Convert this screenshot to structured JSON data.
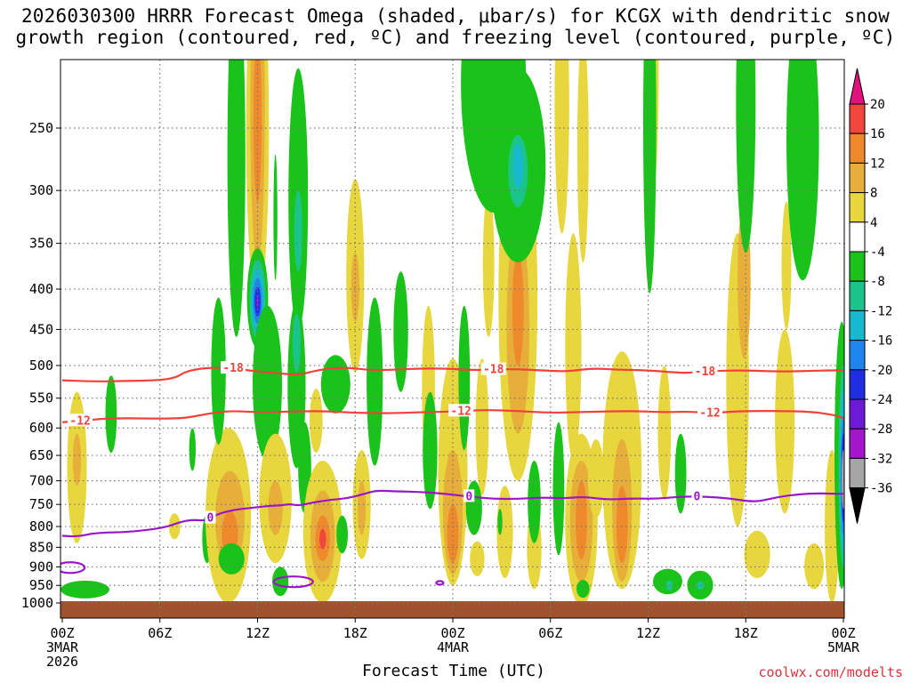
{
  "title": {
    "line1": "2026030300 HRRR Forecast Omega (shaded, μbar/s) for KCGX with dendritic snow",
    "line2": "growth region (contoured, red, ºC) and freezing level (contoured, purple, ºC)"
  },
  "xlabel": "Forecast Time (UTC)",
  "credit": "coolwx.com/modelts",
  "colors": {
    "dgz": "#f0413a",
    "freezing": "#9a17c8",
    "ground": "#a0522d",
    "credit": "#e0303a"
  },
  "chart_data": {
    "type": "heatmap",
    "title": "2026030300 HRRR Forecast Omega (shaded, μbar/s) for KCGX with dendritic snow growth region (contoured, red, ºC) and freezing level (contoured, purple, ºC)",
    "xlabel": "Forecast Time (UTC)",
    "ylabel": "",
    "x_unit": "forecast hour",
    "xlim": [
      0,
      48
    ],
    "ylim_hPa": [
      1050,
      200
    ],
    "y_scale": "log",
    "grid": true,
    "x_ticks": [
      {
        "hour": 0,
        "label": "00Z",
        "sub1": "3MAR",
        "sub2": "2026"
      },
      {
        "hour": 6,
        "label": "06Z"
      },
      {
        "hour": 12,
        "label": "12Z"
      },
      {
        "hour": 18,
        "label": "18Z"
      },
      {
        "hour": 24,
        "label": "00Z",
        "sub1": "4MAR"
      },
      {
        "hour": 30,
        "label": "06Z"
      },
      {
        "hour": 36,
        "label": "12Z"
      },
      {
        "hour": 42,
        "label": "18Z"
      },
      {
        "hour": 48,
        "label": "00Z",
        "sub1": "5MAR"
      }
    ],
    "y_ticks": [
      250,
      300,
      350,
      400,
      450,
      500,
      550,
      600,
      650,
      700,
      750,
      800,
      850,
      900,
      950,
      1000
    ],
    "colorbar": {
      "labels": [
        "20",
        "16",
        "12",
        "8",
        "4",
        "-4",
        "-8",
        "-12",
        "-16",
        "-20",
        "-24",
        "-28",
        "-32",
        "-36"
      ],
      "bins": [
        {
          "range": "16-20",
          "color": "#f2463c"
        },
        {
          "range": "12-16",
          "color": "#ee8a2c"
        },
        {
          "range": "8-12",
          "color": "#e7ae3a"
        },
        {
          "range": "4-8",
          "color": "#e8d63e"
        },
        {
          "range": "-4-4",
          "color": "#ffffff"
        },
        {
          "range": "-8--4",
          "color": "#19c319"
        },
        {
          "range": "-12--8",
          "color": "#1bc48a"
        },
        {
          "range": "-16--12",
          "color": "#17b8d0"
        },
        {
          "range": "-20--16",
          "color": "#1d86ee"
        },
        {
          "range": "-24--20",
          "color": "#1f2ee0"
        },
        {
          "range": "-28--24",
          "color": "#6d1ad6"
        },
        {
          "range": "-32--28",
          "color": "#a316cc"
        },
        {
          "range": "-36--32",
          "color": "#a6a6a6"
        }
      ],
      "over_color": "#e0127e",
      "under_color": "#000000"
    },
    "series": [
      {
        "name": "-18",
        "color": "#f0413a",
        "labels": [
          {
            "text": "-18",
            "x": 10.5
          },
          {
            "text": "-18",
            "x": 26.5
          },
          {
            "text": "-18",
            "x": 39.5
          }
        ],
        "points": [
          [
            0,
            522
          ],
          [
            2,
            524
          ],
          [
            4,
            523
          ],
          [
            6,
            522
          ],
          [
            7,
            518
          ],
          [
            7.5,
            510
          ],
          [
            8.3,
            505
          ],
          [
            9.3,
            503
          ],
          [
            10.5,
            504
          ],
          [
            11.7,
            508
          ],
          [
            13,
            511
          ],
          [
            14.5,
            514
          ],
          [
            15.5,
            508
          ],
          [
            16.5,
            504
          ],
          [
            17.5,
            503
          ],
          [
            19,
            507
          ],
          [
            20.5,
            506
          ],
          [
            22.5,
            504
          ],
          [
            24,
            505
          ],
          [
            25.5,
            507
          ],
          [
            27.5,
            505
          ],
          [
            29.5,
            507
          ],
          [
            31,
            509
          ],
          [
            32.5,
            504
          ],
          [
            34,
            506
          ],
          [
            36,
            507
          ],
          [
            37.5,
            510
          ],
          [
            38.5,
            511
          ],
          [
            40,
            508
          ],
          [
            42,
            507
          ],
          [
            44,
            509
          ],
          [
            46,
            508
          ],
          [
            47.5,
            507
          ],
          [
            48,
            507
          ]
        ]
      },
      {
        "name": "-12",
        "color": "#f0413a",
        "labels": [
          {
            "text": "-12",
            "x": 1.1
          },
          {
            "text": "-12",
            "x": 24.5
          },
          {
            "text": "-12",
            "x": 39.8
          }
        ],
        "points": [
          [
            0,
            590
          ],
          [
            1,
            588
          ],
          [
            2.5,
            584
          ],
          [
            4,
            583
          ],
          [
            6,
            584
          ],
          [
            7.5,
            583
          ],
          [
            8.5,
            578
          ],
          [
            9.5,
            573
          ],
          [
            10.5,
            571
          ],
          [
            12,
            573
          ],
          [
            14,
            572
          ],
          [
            16,
            571
          ],
          [
            18,
            574
          ],
          [
            20,
            575
          ],
          [
            22,
            573
          ],
          [
            24,
            572
          ],
          [
            26,
            569
          ],
          [
            28,
            571
          ],
          [
            30,
            574
          ],
          [
            31.5,
            573
          ],
          [
            33,
            572
          ],
          [
            35,
            571
          ],
          [
            37,
            573
          ],
          [
            38.5,
            572
          ],
          [
            40,
            575
          ],
          [
            41,
            572
          ],
          [
            42.5,
            571
          ],
          [
            44,
            571
          ],
          [
            46,
            572
          ],
          [
            47.5,
            578
          ],
          [
            48,
            583
          ]
        ]
      },
      {
        "name": "0",
        "color": "#9a17c8",
        "labels": [
          {
            "text": "0",
            "x": 9.1
          },
          {
            "text": "0",
            "x": 25.0
          },
          {
            "text": "0",
            "x": 39.0
          }
        ],
        "points": [
          [
            0,
            822
          ],
          [
            1,
            824
          ],
          [
            2,
            815
          ],
          [
            4,
            813
          ],
          [
            5.5,
            807
          ],
          [
            6.5,
            800
          ],
          [
            7.2,
            790
          ],
          [
            8,
            784
          ],
          [
            8.8,
            787
          ],
          [
            9.5,
            772
          ],
          [
            10.5,
            762
          ],
          [
            11.5,
            758
          ],
          [
            12.5,
            754
          ],
          [
            13.5,
            752
          ],
          [
            14,
            749
          ],
          [
            14.5,
            753
          ],
          [
            15.5,
            745
          ],
          [
            16.5,
            740
          ],
          [
            17.5,
            737
          ],
          [
            18.5,
            728
          ],
          [
            19.3,
            720
          ],
          [
            20.5,
            722
          ],
          [
            22,
            723
          ],
          [
            23.5,
            727
          ],
          [
            25,
            733
          ],
          [
            26.5,
            738
          ],
          [
            28,
            738
          ],
          [
            29.5,
            735
          ],
          [
            31,
            737
          ],
          [
            32,
            733
          ],
          [
            33.5,
            740
          ],
          [
            35,
            737
          ],
          [
            36.5,
            738
          ],
          [
            38,
            733
          ],
          [
            39.5,
            733
          ],
          [
            41,
            737
          ],
          [
            42.5,
            745
          ],
          [
            43.5,
            738
          ],
          [
            44.5,
            731
          ],
          [
            46,
            726
          ],
          [
            47.5,
            727
          ],
          [
            48,
            727
          ]
        ]
      }
    ],
    "freezing_small_contours": [
      {
        "x": 0.5,
        "p": 902,
        "value": "0"
      },
      {
        "x": 14.2,
        "p": 940,
        "value": "0"
      },
      {
        "x": 23.2,
        "p": 943,
        "value": "0"
      }
    ]
  }
}
